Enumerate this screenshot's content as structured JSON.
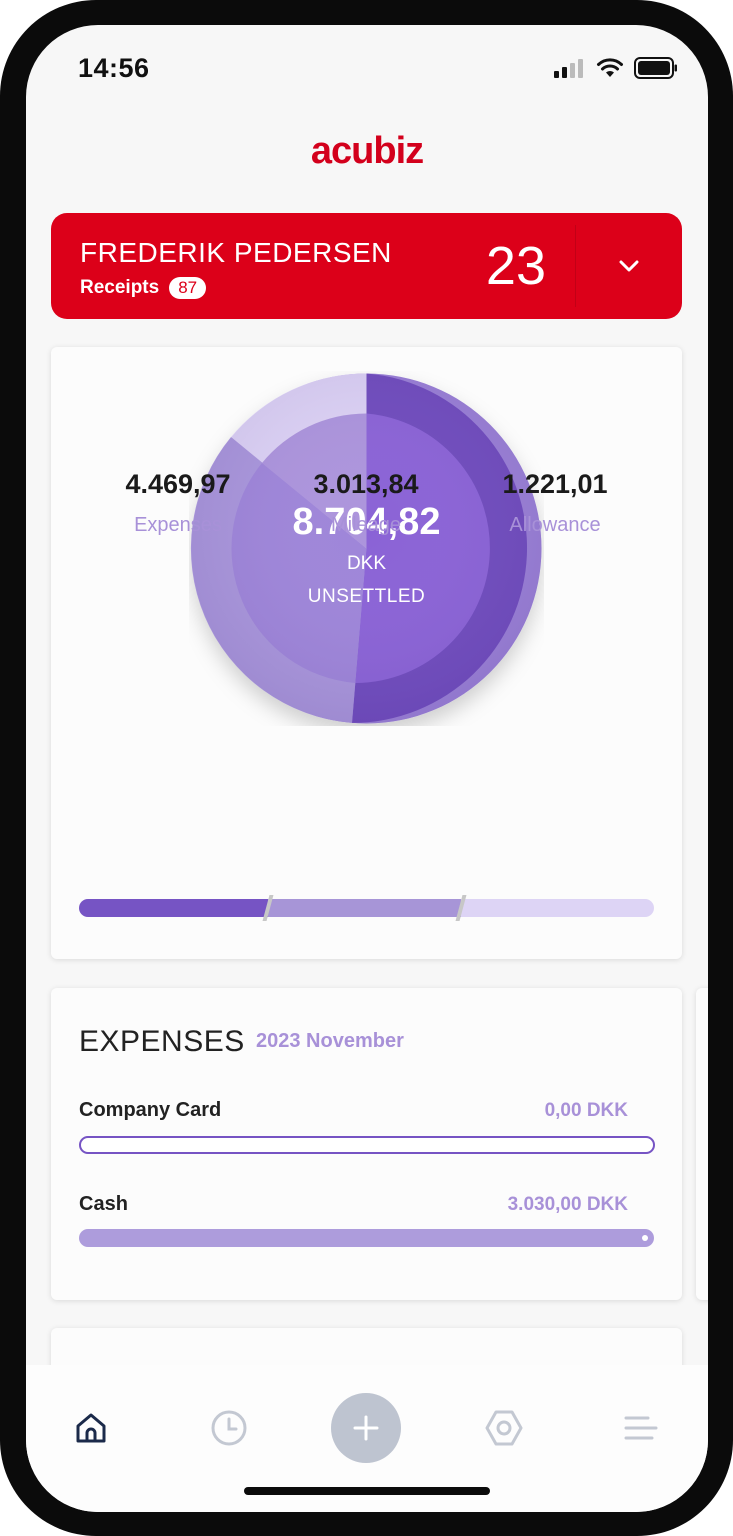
{
  "status_bar": {
    "time": "14:56"
  },
  "brand": {
    "logo_text": "acubiz",
    "color": "#d3001c"
  },
  "user": {
    "name": "FREDERIK PEDERSEN",
    "receipts_label": "Receipts",
    "receipts_count": "87",
    "count": "23"
  },
  "summary": {
    "amount": "8.704,82",
    "currency": "DKK",
    "status": "UNSETTLED",
    "stats": [
      {
        "value": "4.469,97",
        "label": "Expenses"
      },
      {
        "value": "3.013,84",
        "label": "Mileage"
      },
      {
        "value": "1.221,01",
        "label": "Allowance"
      }
    ]
  },
  "expenses": {
    "title": "EXPENSES",
    "period": "2023 November",
    "rows": [
      {
        "label": "Company Card",
        "value": "0,00 DKK",
        "fill_fraction": 0
      },
      {
        "label": "Cash",
        "value": "3.030,00 DKK",
        "fill_fraction": 1
      }
    ]
  },
  "tabs": [
    {
      "icon": "home-icon",
      "active": true
    },
    {
      "icon": "clock-icon",
      "active": false
    },
    {
      "icon": "plus-icon",
      "active": false
    },
    {
      "icon": "hexagon-icon",
      "active": false
    },
    {
      "icon": "menu-icon",
      "active": false
    }
  ],
  "colors": {
    "primary_red": "#dc0019",
    "purple_dark": "#7654c4",
    "purple_mid": "#a795d7",
    "purple_light": "#ddd4f5"
  }
}
